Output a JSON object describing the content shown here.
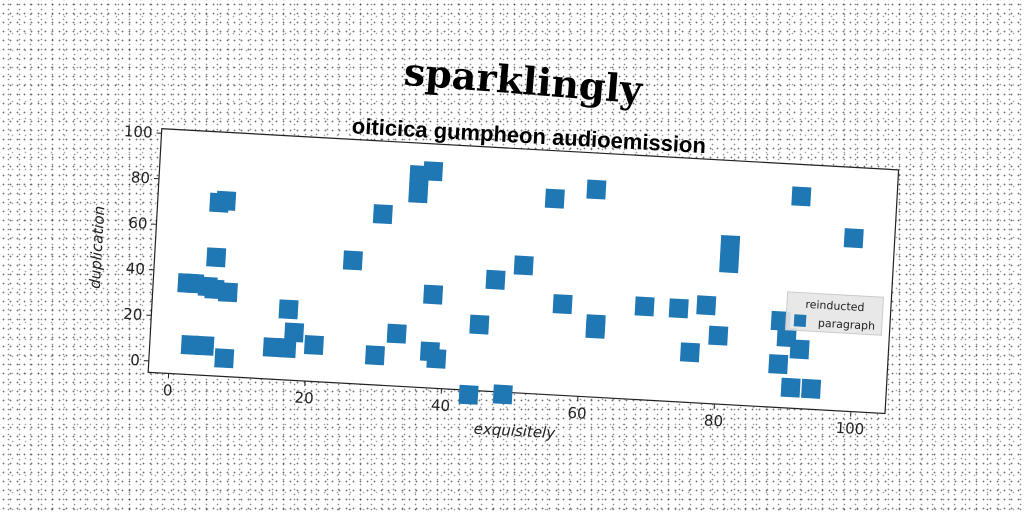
{
  "chart_data": {
    "type": "scatter",
    "title": "sparklingly",
    "subtitle": "oiticica gumpheon audioemission",
    "xlabel": "exquisitely",
    "ylabel": "duplication",
    "xlim": [
      -3,
      105
    ],
    "ylim": [
      -5,
      102
    ],
    "xticks": [
      "0",
      "20",
      "40",
      "60",
      "80",
      "100"
    ],
    "yticks": [
      "0",
      "20",
      "40",
      "60",
      "80",
      "100"
    ],
    "grid": false,
    "legend": {
      "title": "reinducted",
      "position": "right"
    },
    "marker_color": "#1f77b4",
    "series": [
      {
        "name": "paragraph",
        "points": [
          [
            2,
            35
          ],
          [
            3,
            35
          ],
          [
            5,
            34
          ],
          [
            6,
            33
          ],
          [
            8,
            32
          ],
          [
            6,
            71
          ],
          [
            7,
            72
          ],
          [
            6,
            47
          ],
          [
            3,
            8
          ],
          [
            5,
            8
          ],
          [
            8,
            3
          ],
          [
            15,
            9
          ],
          [
            17,
            9
          ],
          [
            17,
            26
          ],
          [
            18,
            16
          ],
          [
            21,
            11
          ],
          [
            26,
            49
          ],
          [
            30,
            70
          ],
          [
            30,
            8
          ],
          [
            33,
            18
          ],
          [
            35,
            88
          ],
          [
            35,
            80
          ],
          [
            37,
            90
          ],
          [
            38,
            36
          ],
          [
            38,
            11
          ],
          [
            39,
            8
          ],
          [
            45,
            24
          ],
          [
            47,
            44
          ],
          [
            44,
            -7
          ],
          [
            49,
            -6
          ],
          [
            51,
            51
          ],
          [
            55,
            81
          ],
          [
            57,
            35
          ],
          [
            61,
            86
          ],
          [
            62,
            27
          ],
          [
            62,
            25
          ],
          [
            69,
            36
          ],
          [
            74,
            36
          ],
          [
            76,
            17
          ],
          [
            78,
            38
          ],
          [
            80,
            25
          ],
          [
            81,
            57
          ],
          [
            81,
            65
          ],
          [
            89,
            33
          ],
          [
            89,
            14
          ],
          [
            90,
            26
          ],
          [
            91,
            88
          ],
          [
            92,
            21
          ],
          [
            91,
            4
          ],
          [
            94,
            4
          ],
          [
            99,
            71
          ]
        ]
      }
    ]
  }
}
